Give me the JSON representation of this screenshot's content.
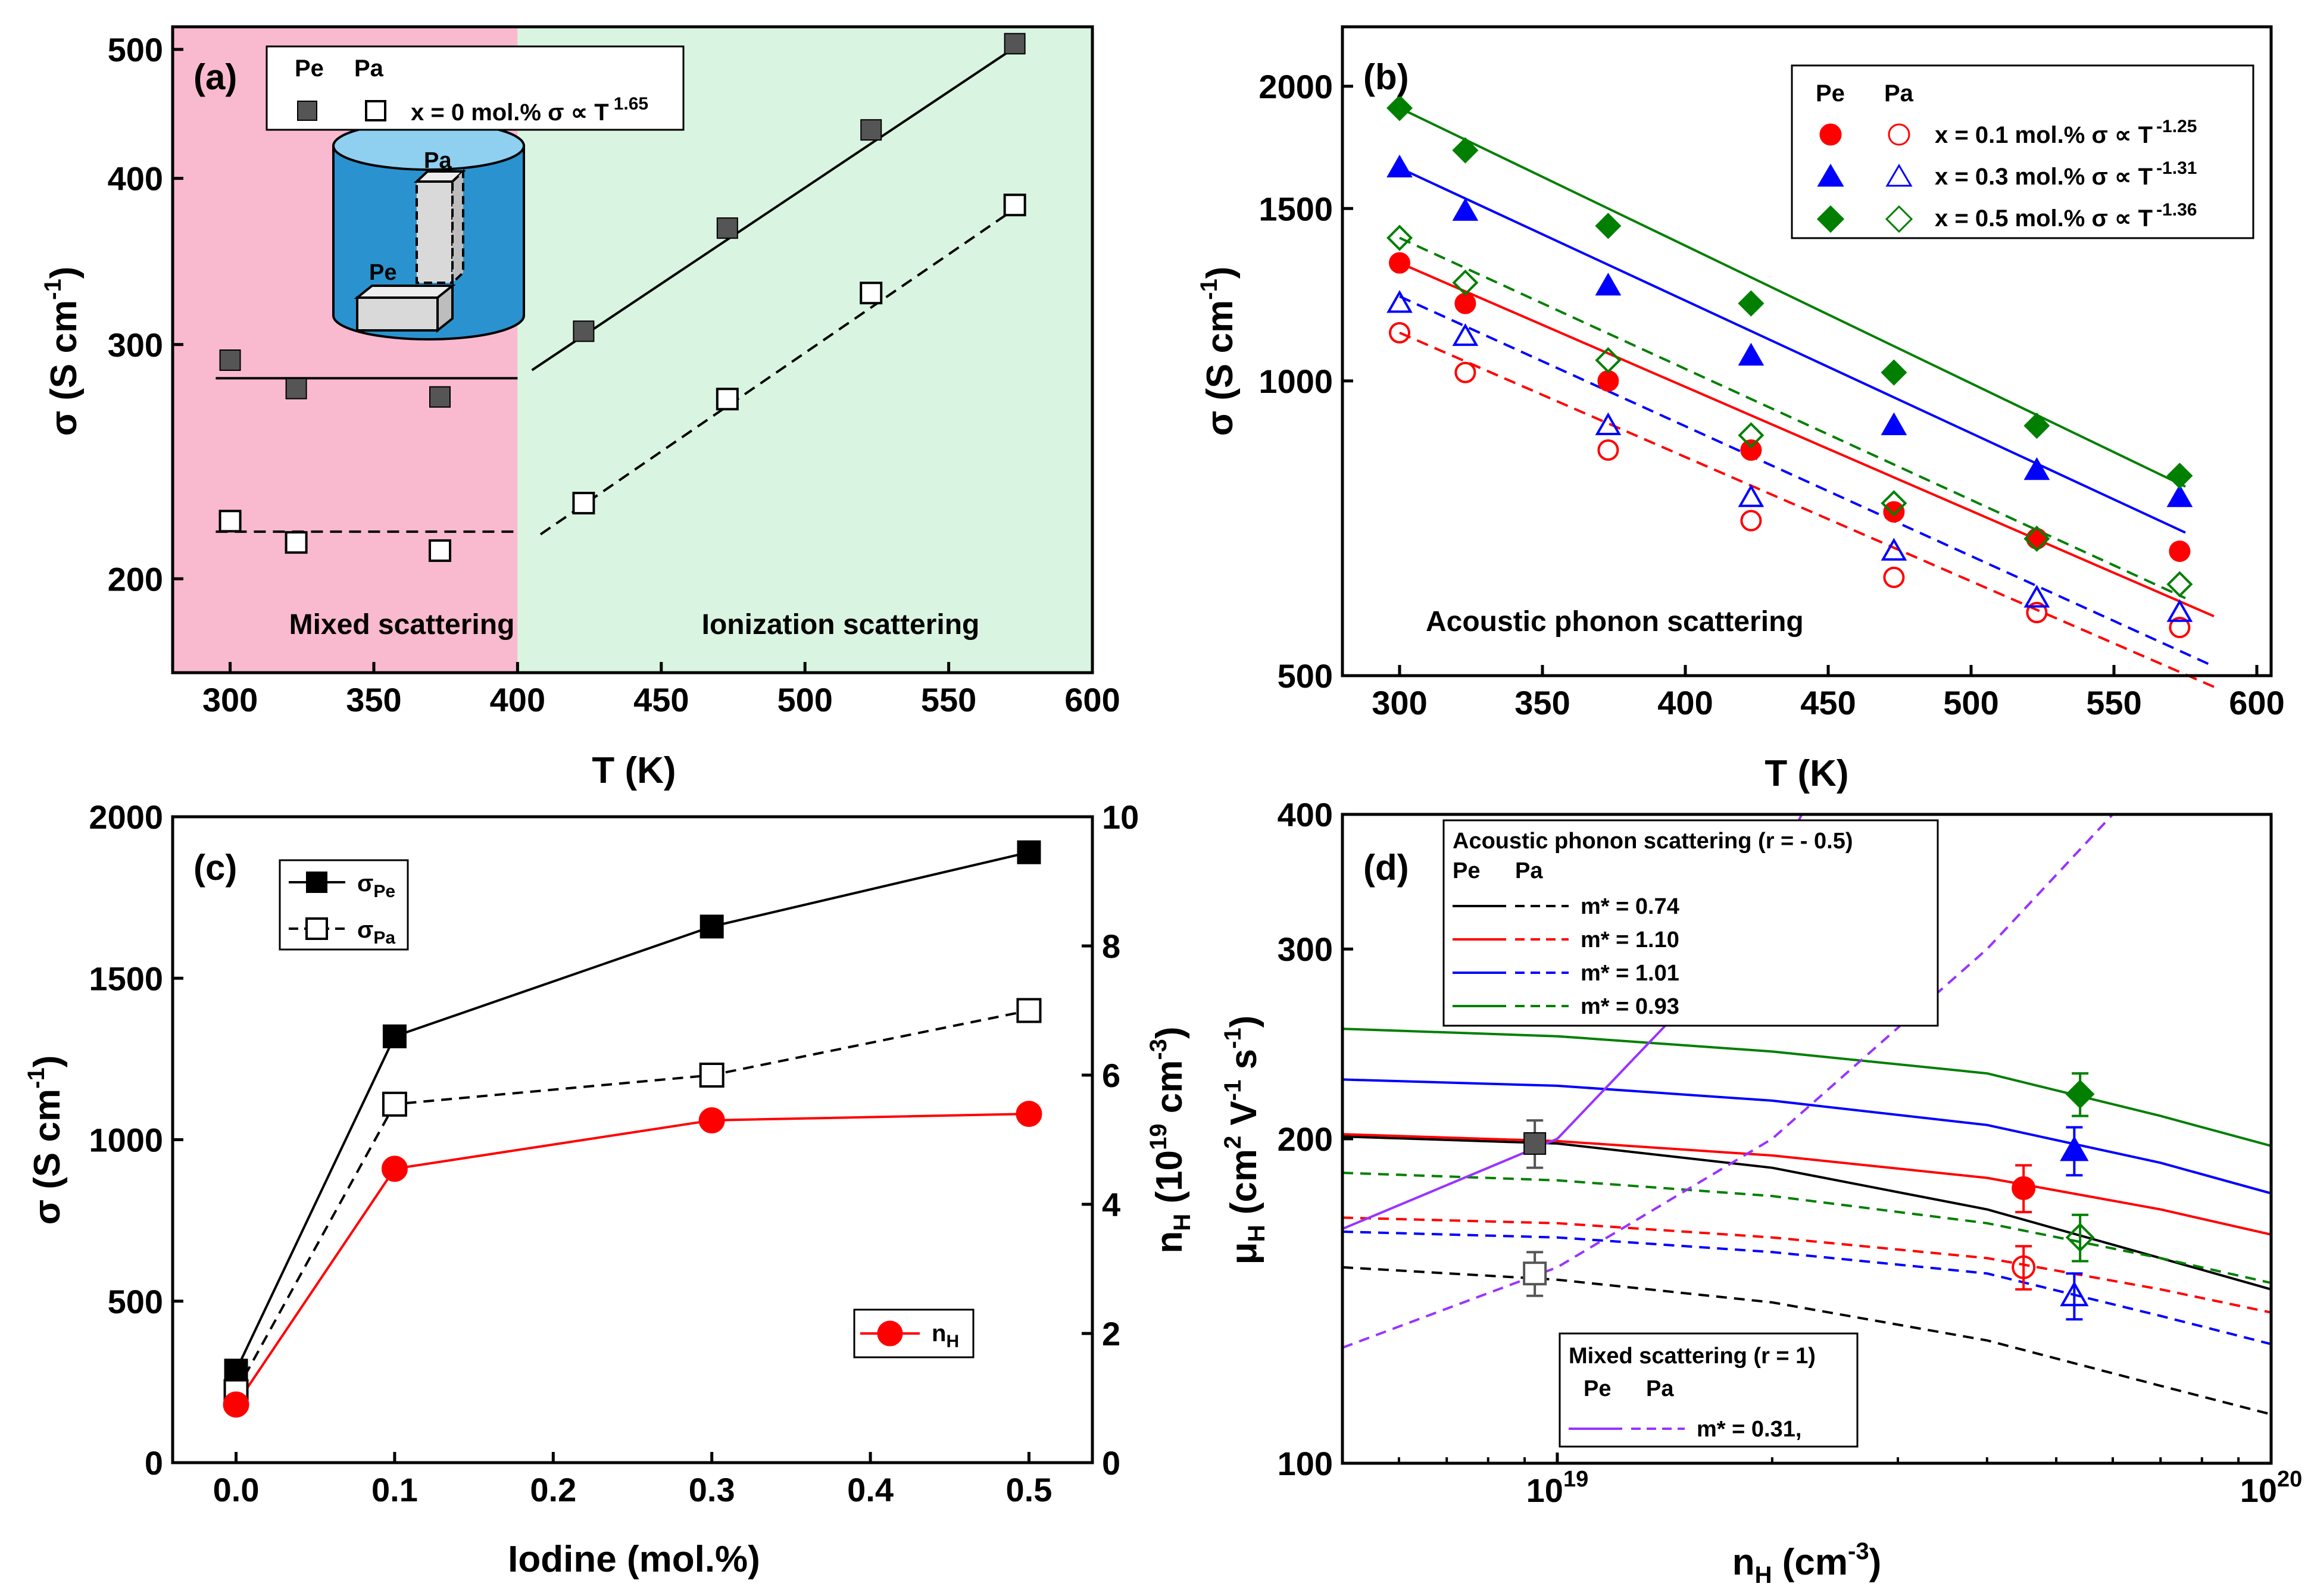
{
  "chart_data": [
    {
      "id": "a",
      "type": "scatter",
      "panel_label": "(a)",
      "xlabel": "T (K)",
      "ylabel": "σ (S cm-1)",
      "yscale": "log",
      "xlim": [
        280,
        600
      ],
      "ylim": [
        170,
        520
      ],
      "xticks": [
        300,
        350,
        400,
        450,
        500,
        550,
        600
      ],
      "yticks": [
        200,
        300,
        400,
        500
      ],
      "regions": [
        {
          "name": "Mixed scattering",
          "x_range": [
            280,
            400
          ],
          "color": "#f9b9cf"
        },
        {
          "name": "Ionization scattering",
          "x_range": [
            400,
            600
          ],
          "color": "#d9f5e1"
        }
      ],
      "legend": {
        "header_pe": "Pe",
        "header_pa": "Pa",
        "entry": "x = 0 mol.% σ ∝ T",
        "exponent": "1.65"
      },
      "inset_labels": {
        "pa": "Pa",
        "pe": "Pe"
      },
      "series": [
        {
          "name": "Pe",
          "marker": "square-filled",
          "x": [
            300,
            323,
            373,
            423,
            473,
            523,
            573
          ],
          "y": [
            292,
            278,
            274,
            307,
            367,
            435,
            505
          ]
        },
        {
          "name": "Pa",
          "marker": "square-open",
          "x": [
            300,
            323,
            373,
            423,
            473,
            523,
            573
          ],
          "y": [
            221,
            213,
            210,
            228,
            273,
            328,
            382
          ]
        }
      ],
      "fits": [
        {
          "series": "Pe",
          "style": "solid",
          "x": [
            295,
            400
          ],
          "y": [
            283,
            283
          ]
        },
        {
          "series": "Pa",
          "style": "dashed",
          "x": [
            295,
            400
          ],
          "y": [
            217,
            217
          ]
        },
        {
          "series": "Pe",
          "style": "solid",
          "x": [
            405,
            575
          ],
          "y": [
            287,
            505
          ]
        },
        {
          "series": "Pa",
          "style": "dashed",
          "x": [
            408,
            575
          ],
          "y": [
            216,
            382
          ]
        }
      ]
    },
    {
      "id": "b",
      "type": "scatter",
      "panel_label": "(b)",
      "xlabel": "T (K)",
      "ylabel": "σ (S cm-1)",
      "yscale": "log",
      "xlim": [
        280,
        605
      ],
      "ylim": [
        500,
        2300
      ],
      "xticks": [
        300,
        350,
        400,
        450,
        500,
        550,
        600
      ],
      "yticks": [
        500,
        1000,
        1500,
        2000
      ],
      "annotation": "Acoustic phonon scattering",
      "legend": {
        "header_pe": "Pe",
        "header_pa": "Pa",
        "entries": [
          {
            "label": "x = 0.1 mol.% σ ∝ T",
            "exponent": "-1.25",
            "color": "#ff0000",
            "marker": "circle"
          },
          {
            "label": "x = 0.3 mol.% σ ∝ T",
            "exponent": "-1.31",
            "color": "#0000ff",
            "marker": "triangle"
          },
          {
            "label": "x = 0.5 mol.% σ ∝ T",
            "exponent": "-1.36",
            "color": "#007f00",
            "marker": "diamond"
          }
        ]
      },
      "series": [
        {
          "name": "x=0.1 Pe",
          "color": "#ff0000",
          "marker": "circle-filled",
          "x": [
            300,
            323,
            373,
            423,
            473,
            523,
            573
          ],
          "y": [
            1320,
            1200,
            1000,
            850,
            735,
            690,
            670
          ]
        },
        {
          "name": "x=0.1 Pa",
          "color": "#ff0000",
          "marker": "circle-open",
          "x": [
            300,
            323,
            373,
            423,
            473,
            523,
            573
          ],
          "y": [
            1120,
            1020,
            850,
            720,
            630,
            580,
            560
          ]
        },
        {
          "name": "x=0.3 Pe",
          "color": "#0000ff",
          "marker": "triangle-filled",
          "x": [
            300,
            323,
            373,
            423,
            473,
            523,
            573
          ],
          "y": [
            1650,
            1490,
            1250,
            1060,
            900,
            810,
            760
          ]
        },
        {
          "name": "x=0.3 Pa",
          "color": "#0000ff",
          "marker": "triangle-open",
          "x": [
            300,
            323,
            373,
            423,
            473,
            523,
            573
          ],
          "y": [
            1200,
            1110,
            900,
            760,
            670,
            600,
            580
          ]
        },
        {
          "name": "x=0.5 Pe",
          "color": "#007f00",
          "marker": "diamond-filled",
          "x": [
            300,
            323,
            373,
            423,
            473,
            523,
            573
          ],
          "y": [
            1900,
            1720,
            1440,
            1200,
            1020,
            900,
            800
          ]
        },
        {
          "name": "x=0.5 Pa",
          "color": "#007f00",
          "marker": "diamond-open",
          "x": [
            300,
            323,
            373,
            423,
            473,
            523,
            573
          ],
          "y": [
            1400,
            1260,
            1050,
            880,
            750,
            690,
            620
          ]
        }
      ],
      "fits": [
        {
          "color": "#ff0000",
          "style": "solid",
          "x": [
            300,
            585
          ],
          "y": [
            1320,
            575
          ]
        },
        {
          "color": "#ff0000",
          "style": "dashed",
          "x": [
            300,
            585
          ],
          "y": [
            1120,
            487
          ]
        },
        {
          "color": "#0000ff",
          "style": "solid",
          "x": [
            300,
            575
          ],
          "y": [
            1650,
            700
          ]
        },
        {
          "color": "#0000ff",
          "style": "dashed",
          "x": [
            300,
            585
          ],
          "y": [
            1220,
            511
          ]
        },
        {
          "color": "#007f00",
          "style": "solid",
          "x": [
            300,
            575
          ],
          "y": [
            1900,
            780
          ]
        },
        {
          "color": "#007f00",
          "style": "dashed",
          "x": [
            300,
            575
          ],
          "y": [
            1400,
            600
          ]
        }
      ]
    },
    {
      "id": "c",
      "type": "line",
      "panel_label": "(c)",
      "xlabel": "Iodine (mol.%)",
      "ylabel": "σ (S cm-1)",
      "y2label": "nH (10^19 cm-3)",
      "xlim": [
        -0.04,
        0.54
      ],
      "ylim": [
        0,
        2000
      ],
      "y2lim": [
        0,
        10
      ],
      "xticks": [
        "0.0",
        "0.1",
        "0.2",
        "0.3",
        "0.4",
        "0.5"
      ],
      "yticks": [
        0,
        500,
        1000,
        1500,
        2000
      ],
      "y2ticks": [
        0,
        2,
        4,
        6,
        8,
        10
      ],
      "x": [
        0.0,
        0.1,
        0.3,
        0.5
      ],
      "series": [
        {
          "name": "σPe",
          "axis": "left",
          "color": "#000000",
          "style": "solid",
          "marker": "square-filled",
          "values": [
            285,
            1320,
            1660,
            1890
          ]
        },
        {
          "name": "σPa",
          "axis": "left",
          "color": "#000000",
          "style": "dashed",
          "marker": "square-open",
          "values": [
            220,
            1110,
            1200,
            1400
          ]
        },
        {
          "name": "nH",
          "axis": "right",
          "color": "#ff0000",
          "style": "solid",
          "marker": "circle-filled",
          "values": [
            0.9,
            4.55,
            5.3,
            5.4
          ]
        }
      ],
      "legend": {
        "sigma_pe": "σ",
        "sigma_pe_sub": "Pe",
        "sigma_pa": "σ",
        "sigma_pa_sub": "Pa",
        "nh": "n",
        "nh_sub": "H"
      }
    },
    {
      "id": "d",
      "type": "scatter",
      "panel_label": "(d)",
      "xlabel": "nH (cm-3)",
      "ylabel": "μH (cm2 V-1 s-1)",
      "xscale": "log",
      "yscale": "log",
      "xlim": [
        5e+18,
        1e+20
      ],
      "ylim": [
        100,
        400
      ],
      "xticks": [
        {
          "value": 1e+19,
          "base": "10",
          "exp": "19"
        },
        {
          "value": 1e+20,
          "base": "10",
          "exp": "20"
        }
      ],
      "yticks": [
        100,
        200,
        300,
        400
      ],
      "legend_acoustic": {
        "title": "Acoustic phonon scattering (r = - 0.5)",
        "header_pe": "Pe",
        "header_pa": "Pa",
        "entries": [
          {
            "label": "m* = 0.74",
            "color": "#000000"
          },
          {
            "label": "m* = 1.10",
            "color": "#ff0000"
          },
          {
            "label": "m* = 1.01",
            "color": "#0000ff"
          },
          {
            "label": "m* = 0.93",
            "color": "#007f00"
          }
        ]
      },
      "legend_mixed": {
        "title": "Mixed scattering (r = 1)",
        "header_pe": "Pe",
        "header_pa": "Pa",
        "entry": {
          "label": "m* = 0.31,",
          "color": "#9933ff"
        }
      },
      "curves": [
        {
          "color": "#000000",
          "style": "solid",
          "x": [
            5e+18,
            1e+19,
            2e+19,
            4e+19,
            7e+19,
            1e+20
          ],
          "y": [
            201,
            198,
            188,
            172,
            155,
            145
          ]
        },
        {
          "color": "#000000",
          "style": "dashed",
          "x": [
            5e+18,
            1e+19,
            2e+19,
            4e+19,
            7e+19,
            1e+20
          ],
          "y": [
            152,
            148,
            141,
            130,
            118,
            111
          ]
        },
        {
          "color": "#ff0000",
          "style": "solid",
          "x": [
            5e+18,
            1e+19,
            2e+19,
            4e+19,
            7e+19,
            1e+20
          ],
          "y": [
            202,
            199,
            193,
            184,
            172,
            163
          ]
        },
        {
          "color": "#ff0000",
          "style": "dashed",
          "x": [
            5e+18,
            1e+19,
            2e+19,
            4e+19,
            7e+19,
            1e+20
          ],
          "y": [
            169,
            167,
            162,
            155,
            145,
            138
          ]
        },
        {
          "color": "#0000ff",
          "style": "solid",
          "x": [
            5e+18,
            1e+19,
            2e+19,
            4e+19,
            7e+19,
            1e+20
          ],
          "y": [
            227,
            224,
            217,
            206,
            190,
            178
          ]
        },
        {
          "color": "#0000ff",
          "style": "dashed",
          "x": [
            5e+18,
            1e+19,
            2e+19,
            4e+19,
            7e+19,
            1e+20
          ],
          "y": [
            164,
            162,
            157,
            150,
            137,
            129
          ]
        },
        {
          "color": "#007f00",
          "style": "solid",
          "x": [
            5e+18,
            1e+19,
            2e+19,
            4e+19,
            7e+19,
            1e+20
          ],
          "y": [
            253,
            249,
            241,
            230,
            210,
            197
          ]
        },
        {
          "color": "#007f00",
          "style": "dashed",
          "x": [
            5e+18,
            1e+19,
            2e+19,
            4e+19,
            7e+19,
            1e+20
          ],
          "y": [
            186,
            183,
            177,
            167,
            155,
            147
          ]
        },
        {
          "color": "#9933ff",
          "style": "solid",
          "x": [
            5e+18,
            1e+19,
            1.5e+19,
            2e+19,
            2.2e+19
          ],
          "y": [
            165,
            200,
            265,
            350,
            400
          ]
        },
        {
          "color": "#9933ff",
          "style": "dashed",
          "x": [
            5e+18,
            1e+19,
            2e+19,
            4e+19,
            6e+19
          ],
          "y": [
            128,
            152,
            200,
            300,
            400
          ]
        }
      ],
      "points": [
        {
          "x": 9.3e+18,
          "y": 198,
          "err": 10,
          "color": "#555555",
          "marker": "square-filled"
        },
        {
          "x": 9.3e+18,
          "y": 150,
          "err": 7,
          "color": "#555555",
          "marker": "square-open"
        },
        {
          "x": 4.5e+19,
          "y": 180,
          "err": 9,
          "color": "#ff0000",
          "marker": "circle-filled"
        },
        {
          "x": 4.5e+19,
          "y": 152,
          "err": 7,
          "color": "#ff0000",
          "marker": "circle-open"
        },
        {
          "x": 5.3e+19,
          "y": 195,
          "err": 10,
          "color": "#0000ff",
          "marker": "triangle-filled"
        },
        {
          "x": 5.3e+19,
          "y": 143,
          "err": 7,
          "color": "#0000ff",
          "marker": "triangle-open"
        },
        {
          "x": 5.4e+19,
          "y": 220,
          "err": 10,
          "color": "#007f00",
          "marker": "diamond-filled"
        },
        {
          "x": 5.4e+19,
          "y": 162,
          "err": 8,
          "color": "#007f00",
          "marker": "diamond-open"
        }
      ]
    }
  ]
}
